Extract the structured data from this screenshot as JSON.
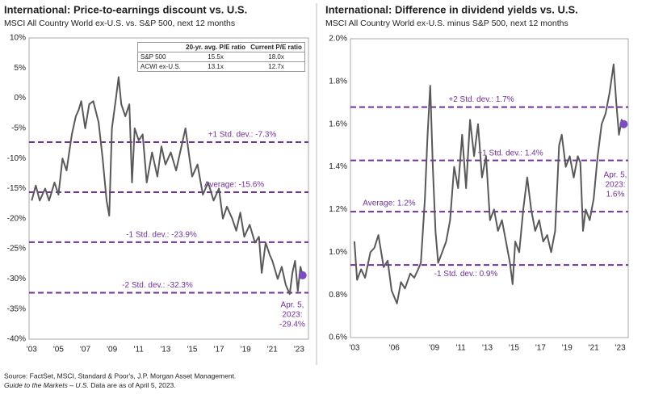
{
  "chart_data": [
    {
      "type": "line",
      "title": "International: Price-to-earnings discount vs. U.S.",
      "subtitle": "MSCI All Country World ex-U.S. vs. S&P 500, next 12 months",
      "color": "#595959",
      "ref_color": "#7030a0",
      "x": [
        2003.0,
        2003.3,
        2003.6,
        2004.0,
        2004.3,
        2004.7,
        2005.0,
        2005.3,
        2005.6,
        2006.0,
        2006.3,
        2006.5,
        2006.7,
        2007.0,
        2007.3,
        2007.6,
        2008.0,
        2008.3,
        2008.6,
        2008.8,
        2009.0,
        2009.3,
        2009.5,
        2009.7,
        2010.0,
        2010.3,
        2010.5,
        2010.7,
        2011.0,
        2011.3,
        2011.6,
        2012.0,
        2012.4,
        2012.7,
        2013.0,
        2013.4,
        2013.8,
        2014.2,
        2014.5,
        2014.8,
        2015.0,
        2015.4,
        2015.8,
        2016.2,
        2016.6,
        2017.0,
        2017.3,
        2017.6,
        2018.0,
        2018.3,
        2018.6,
        2018.9,
        2019.3,
        2019.7,
        2020.0,
        2020.2,
        2020.5,
        2020.8,
        2021.0,
        2021.4,
        2021.7,
        2022.0,
        2022.3,
        2022.5,
        2022.7,
        2022.9,
        2023.1,
        2023.26
      ],
      "values": [
        -17,
        -14.5,
        -17,
        -15,
        -17,
        -14,
        -16,
        -10,
        -12,
        -6,
        -3,
        -2,
        -0.5,
        -5,
        -1,
        -0.5,
        -4,
        -10,
        -17,
        -19.5,
        -5,
        0,
        3.5,
        -1,
        -3,
        -1,
        -14,
        -5,
        -7,
        -6,
        -14,
        -9,
        -13,
        -8,
        -11,
        -9,
        -12,
        -8,
        -5,
        -10,
        -13,
        -11,
        -16,
        -14,
        -17,
        -15,
        -20,
        -18,
        -20,
        -22,
        -19,
        -23,
        -21,
        -24,
        -23,
        -29,
        -24,
        -26,
        -27,
        -30,
        -28,
        -31,
        -32.5,
        -29,
        -27,
        -32,
        -28,
        -29.4
      ],
      "xlim": [
        2002.8,
        2023.7
      ],
      "xticks": [
        {
          "value": 2003,
          "label": "'03"
        },
        {
          "value": 2005,
          "label": "'05"
        },
        {
          "value": 2007,
          "label": "'07"
        },
        {
          "value": 2009,
          "label": "'09"
        },
        {
          "value": 2011,
          "label": "'11"
        },
        {
          "value": 2013,
          "label": "'13"
        },
        {
          "value": 2015,
          "label": "'15"
        },
        {
          "value": 2017,
          "label": "'17"
        },
        {
          "value": 2019,
          "label": "'19"
        },
        {
          "value": 2021,
          "label": "'21"
        },
        {
          "value": 2023,
          "label": "'23"
        }
      ],
      "ylim": [
        -40,
        10
      ],
      "yticks": [
        {
          "value": 10,
          "label": "10%"
        },
        {
          "value": 5,
          "label": "5%"
        },
        {
          "value": 0,
          "label": "0%"
        },
        {
          "value": -5,
          "label": "-5%"
        },
        {
          "value": -10,
          "label": "-10%"
        },
        {
          "value": -15,
          "label": "-15%"
        },
        {
          "value": -20,
          "label": "-20%"
        },
        {
          "value": -25,
          "label": "-25%"
        },
        {
          "value": -30,
          "label": "-30%"
        },
        {
          "value": -35,
          "label": "-35%"
        },
        {
          "value": -40,
          "label": "-40%"
        }
      ],
      "reference_lines": [
        {
          "value": -7.3,
          "label": "+1 Std. dev.: -7.3%"
        },
        {
          "value": -15.6,
          "label": "Average: -15.6%"
        },
        {
          "value": -23.9,
          "label": "-1 Std. dev.: -23.9%"
        },
        {
          "value": -32.3,
          "label": "-2 Std. dev.: -32.3%"
        }
      ],
      "annotation": {
        "lines": [
          "Apr. 5,",
          "2023:",
          "-29.4%"
        ],
        "value": -29.4
      },
      "table": {
        "columns": [
          "20-yr. avg. P/E ratio",
          "Current P/E ratio"
        ],
        "rows": [
          [
            "S&P 500",
            "15.5x",
            "18.0x"
          ],
          [
            "ACWI ex-U.S.",
            "13.1x",
            "12.7x"
          ]
        ]
      }
    },
    {
      "type": "line",
      "title": "International: Difference in dividend yields vs. U.S.",
      "subtitle": "MSCI All Country World ex-U.S. minus S&P 500, next 12 months",
      "color": "#595959",
      "ref_color": "#7030a0",
      "x": [
        2003.0,
        2003.2,
        2003.5,
        2003.8,
        2004.2,
        2004.5,
        2004.8,
        2005.2,
        2005.5,
        2005.8,
        2006.2,
        2006.5,
        2006.8,
        2007.2,
        2007.5,
        2007.8,
        2008.0,
        2008.3,
        2008.5,
        2008.7,
        2008.9,
        2009.1,
        2009.3,
        2009.6,
        2009.9,
        2010.2,
        2010.5,
        2010.8,
        2011.1,
        2011.4,
        2011.7,
        2012.0,
        2012.3,
        2012.6,
        2012.9,
        2013.2,
        2013.5,
        2013.8,
        2014.1,
        2014.4,
        2014.7,
        2014.9,
        2015.1,
        2015.4,
        2015.7,
        2016.0,
        2016.3,
        2016.6,
        2016.9,
        2017.2,
        2017.5,
        2017.8,
        2018.1,
        2018.4,
        2018.6,
        2018.9,
        2019.2,
        2019.5,
        2019.8,
        2020.0,
        2020.2,
        2020.4,
        2020.7,
        2021.0,
        2021.3,
        2021.6,
        2021.9,
        2022.2,
        2022.5,
        2022.7,
        2022.9,
        2023.1,
        2023.26
      ],
      "values": [
        1.05,
        0.87,
        0.92,
        0.88,
        1.0,
        1.02,
        1.08,
        0.93,
        0.96,
        0.82,
        0.76,
        0.86,
        0.83,
        0.9,
        0.88,
        0.92,
        0.95,
        1.25,
        1.55,
        1.78,
        1.4,
        1.1,
        0.95,
        1.0,
        1.05,
        1.15,
        1.4,
        1.3,
        1.55,
        1.3,
        1.62,
        1.45,
        1.6,
        1.35,
        1.45,
        1.15,
        1.2,
        1.1,
        1.15,
        1.05,
        0.95,
        0.85,
        1.05,
        1.0,
        1.2,
        1.35,
        1.2,
        1.1,
        1.15,
        1.05,
        1.08,
        1.0,
        1.1,
        1.5,
        1.55,
        1.4,
        1.45,
        1.35,
        1.45,
        1.42,
        1.1,
        1.2,
        1.15,
        1.25,
        1.45,
        1.6,
        1.65,
        1.75,
        1.88,
        1.7,
        1.55,
        1.62,
        1.6
      ],
      "xlim": [
        2002.7,
        2023.6
      ],
      "xticks": [
        {
          "value": 2003,
          "label": "'03"
        },
        {
          "value": 2006,
          "label": "'06"
        },
        {
          "value": 2009,
          "label": "'09"
        },
        {
          "value": 2011,
          "label": "'11"
        },
        {
          "value": 2013,
          "label": "'13"
        },
        {
          "value": 2015,
          "label": "'15"
        },
        {
          "value": 2017,
          "label": "'17"
        },
        {
          "value": 2019,
          "label": "'19"
        },
        {
          "value": 2021,
          "label": "'21"
        },
        {
          "value": 2023,
          "label": "'23"
        }
      ],
      "ylim": [
        0.6,
        2.0
      ],
      "yticks": [
        {
          "value": 2.0,
          "label": "2.0%"
        },
        {
          "value": 1.8,
          "label": "1.8%"
        },
        {
          "value": 1.6,
          "label": "1.6%"
        },
        {
          "value": 1.4,
          "label": "1.4%"
        },
        {
          "value": 1.2,
          "label": "1.2%"
        },
        {
          "value": 1.0,
          "label": "1.0%"
        },
        {
          "value": 0.8,
          "label": "0.8%"
        },
        {
          "value": 0.6,
          "label": "0.6%"
        }
      ],
      "reference_lines": [
        {
          "value": 1.68,
          "label": "+2 Std. dev.: 1.7%"
        },
        {
          "value": 1.43,
          "label": "+1 Std. dev.: 1.4%"
        },
        {
          "value": 1.19,
          "label": "Average: 1.2%"
        },
        {
          "value": 0.94,
          "label": "-1 Std. dev.: 0.9%"
        }
      ],
      "annotation": {
        "lines": [
          "Apr. 5,",
          "2023:",
          "1.6%"
        ],
        "value": 1.6
      }
    }
  ],
  "footnotes": {
    "source": "Source: FactSet, MSCI, Standard & Poor's, J.P. Morgan Asset Management.",
    "guide": "Guide to the Markets – U.S.",
    "asof": "Data are as of April 5, 2023."
  }
}
